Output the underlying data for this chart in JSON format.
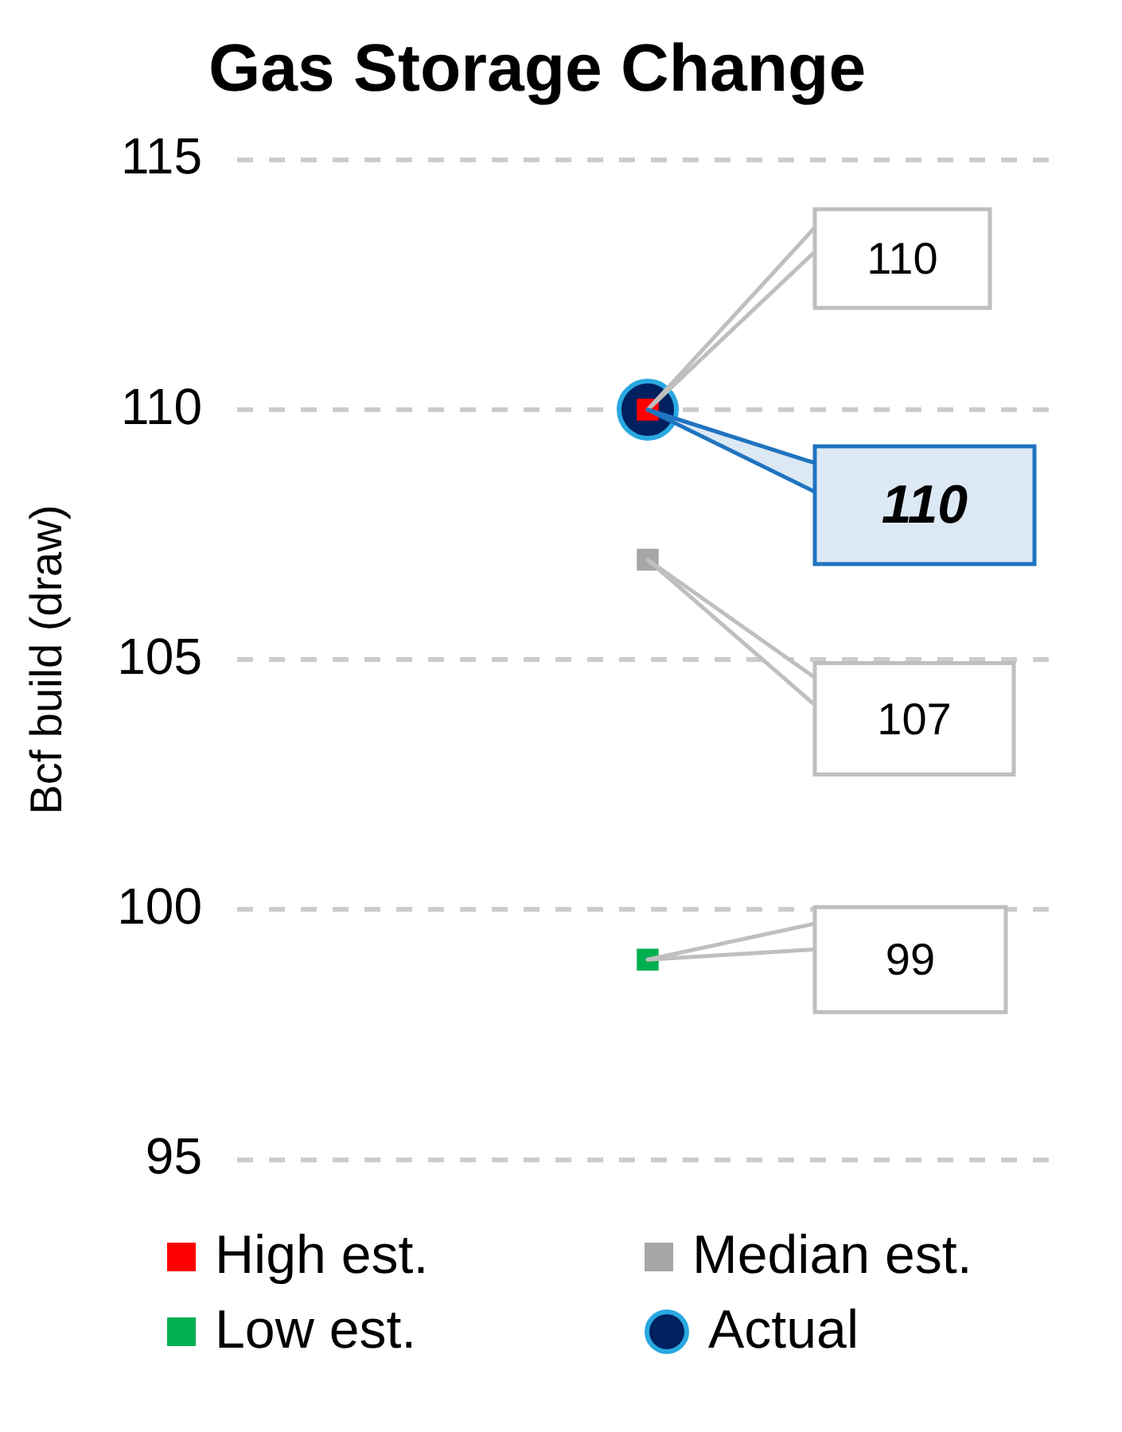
{
  "chart_data": {
    "type": "scatter",
    "title": "Gas Storage Change",
    "ylabel": "Bcf build (draw)",
    "categories": [
      null
    ],
    "series": [
      {
        "name": "High est.",
        "color": "#ff0000",
        "values": [
          110
        ],
        "marker": "square"
      },
      {
        "name": "Median est.",
        "color": "#a6a6a6",
        "values": [
          107
        ],
        "marker": "square"
      },
      {
        "name": "Low est.",
        "color": "#00b050",
        "values": [
          99
        ],
        "marker": "square"
      },
      {
        "name": "Actual",
        "color": "#002060",
        "values": [
          110
        ],
        "marker": "circle"
      }
    ],
    "annotations": [
      "110",
      "107",
      "99",
      "110"
    ],
    "ylim": [
      95,
      115
    ],
    "yticks": [
      95,
      100,
      105,
      110,
      115
    ],
    "grid": "y",
    "legend": "bottom"
  }
}
